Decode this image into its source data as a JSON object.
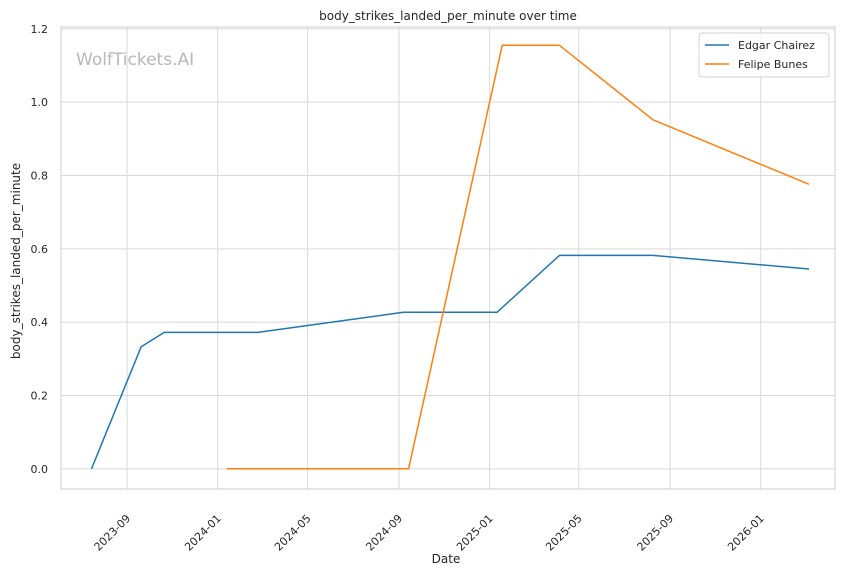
{
  "chart_data": {
    "type": "line",
    "title": "body_strikes_landed_per_minute over time",
    "xlabel": "Date",
    "ylabel": "body_strikes_landed_per_minute",
    "watermark": "WolfTickets.AI",
    "ylim": [
      -0.055,
      1.205
    ],
    "xlim": [
      "2023-06-04",
      "2026-04-11"
    ],
    "x_ticks": [
      "2023-09",
      "2024-01",
      "2024-05",
      "2024-09",
      "2025-01",
      "2025-05",
      "2025-09",
      "2026-01"
    ],
    "y_ticks": [
      "0.0",
      "0.2",
      "0.4",
      "0.6",
      "0.8",
      "1.0",
      "1.2"
    ],
    "grid": true,
    "legend_position": "top-right",
    "series": [
      {
        "name": "Edgar Chairez",
        "color": "#1f77b4",
        "x": [
          "2023-07-15",
          "2023-09-20",
          "2023-10-21",
          "2024-02-24",
          "2024-09-07",
          "2025-01-11",
          "2025-04-05",
          "2025-08-09",
          "2026-03-07"
        ],
        "y": [
          0.0,
          0.333,
          0.372,
          0.372,
          0.427,
          0.427,
          0.582,
          0.582,
          0.545
        ]
      },
      {
        "name": "Felipe Bunes",
        "color": "#ff7f0e",
        "x": [
          "2024-01-13",
          "2024-09-14",
          "2025-01-18",
          "2025-04-05",
          "2025-08-09",
          "2026-03-07"
        ],
        "y": [
          0.0,
          0.0,
          1.155,
          1.155,
          0.952,
          0.776
        ]
      }
    ]
  }
}
